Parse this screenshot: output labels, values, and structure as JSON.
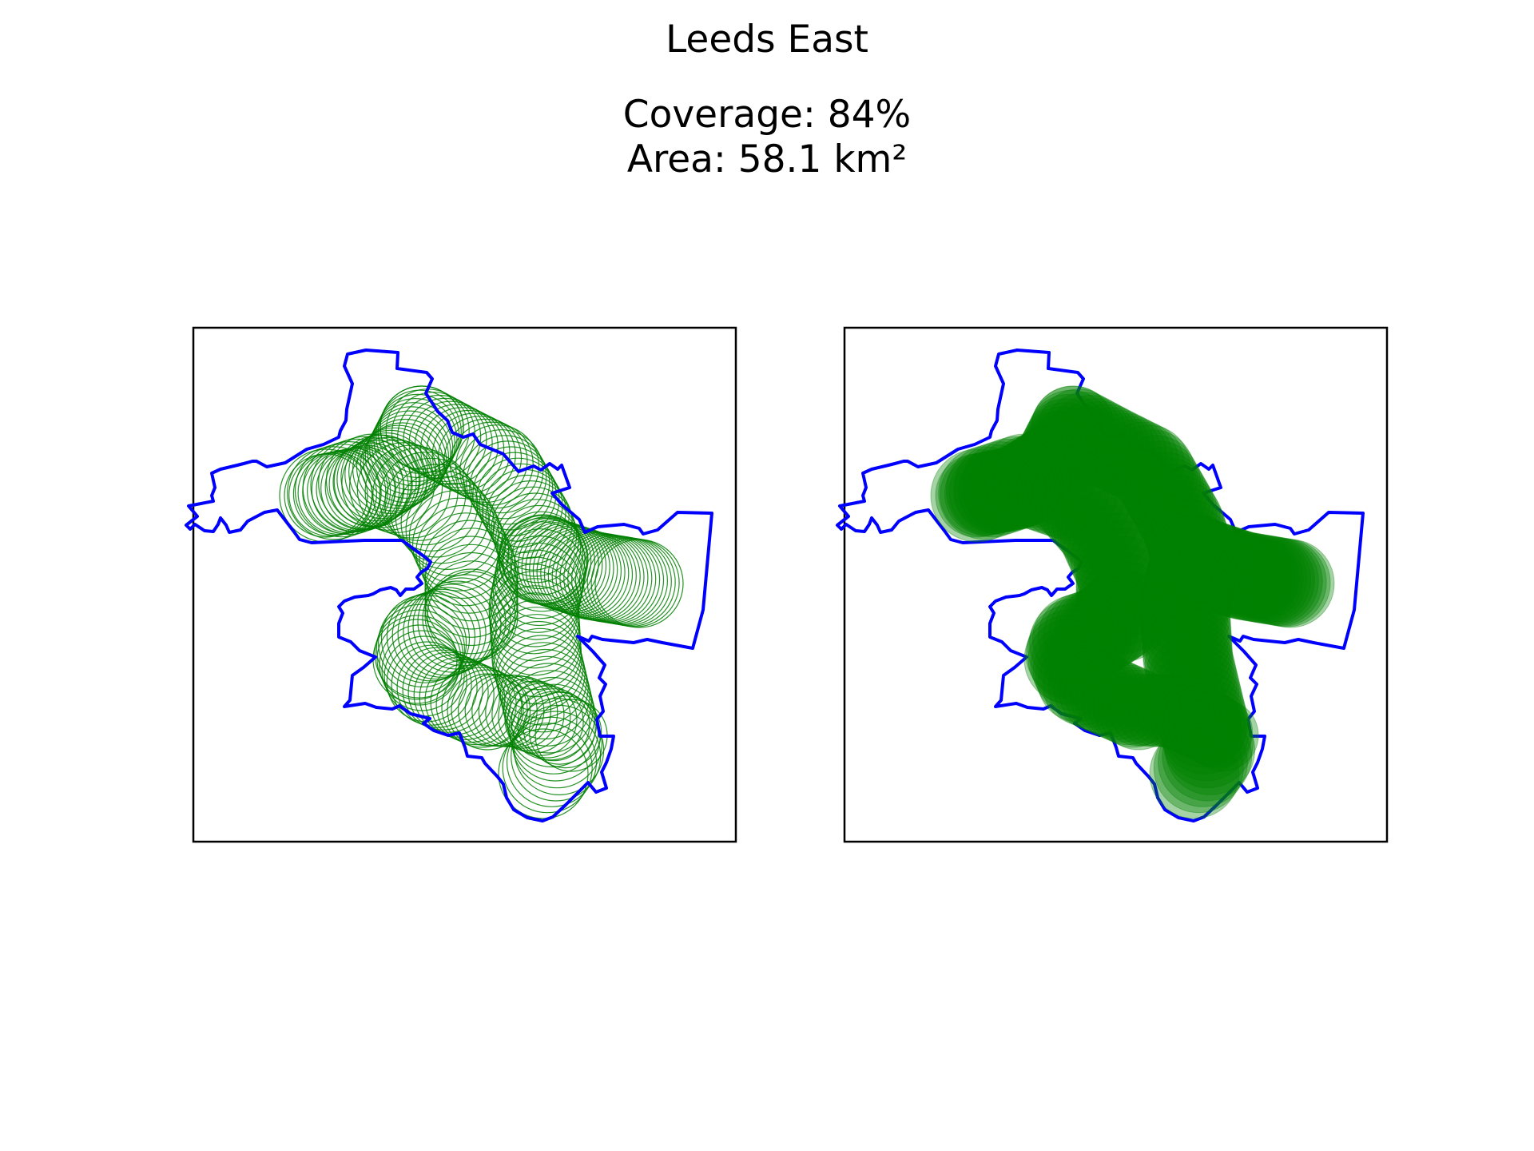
{
  "figure": {
    "title": "Leeds East",
    "coverage_text": "Coverage: 84%",
    "area_text": "Area: 58.1 km²"
  },
  "colors": {
    "boundary": "#0000ff",
    "coverage": "#008000",
    "frame": "#000000",
    "background": "#ffffff"
  },
  "panels": [
    {
      "name": "left",
      "style": "outline-circles"
    },
    {
      "name": "right",
      "style": "filled-circles"
    }
  ]
}
